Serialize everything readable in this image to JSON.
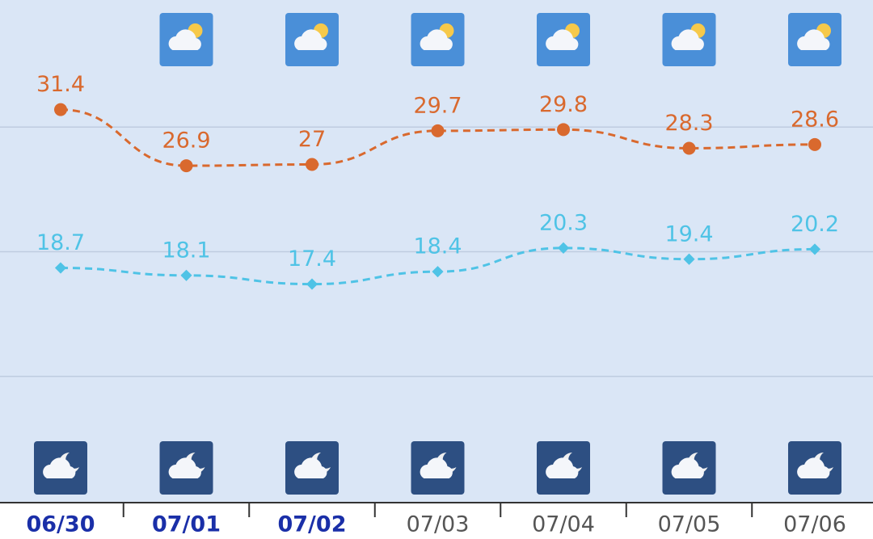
{
  "chart_data": {
    "type": "line",
    "categories": [
      "06/30",
      "07/01",
      "07/02",
      "07/03",
      "07/04",
      "07/05",
      "07/06"
    ],
    "series": [
      {
        "name": null,
        "color": "#d9692e",
        "values": [
          31.4,
          26.9,
          27,
          29.7,
          29.8,
          28.3,
          28.6
        ]
      },
      {
        "name": null,
        "color": "#4fc3e6",
        "values": [
          18.7,
          18.1,
          17.4,
          18.4,
          20.3,
          19.4,
          20.2
        ]
      }
    ],
    "ylim": [
      0,
      40
    ],
    "yticks": [
      10,
      20,
      30
    ],
    "grid": true
  }
}
